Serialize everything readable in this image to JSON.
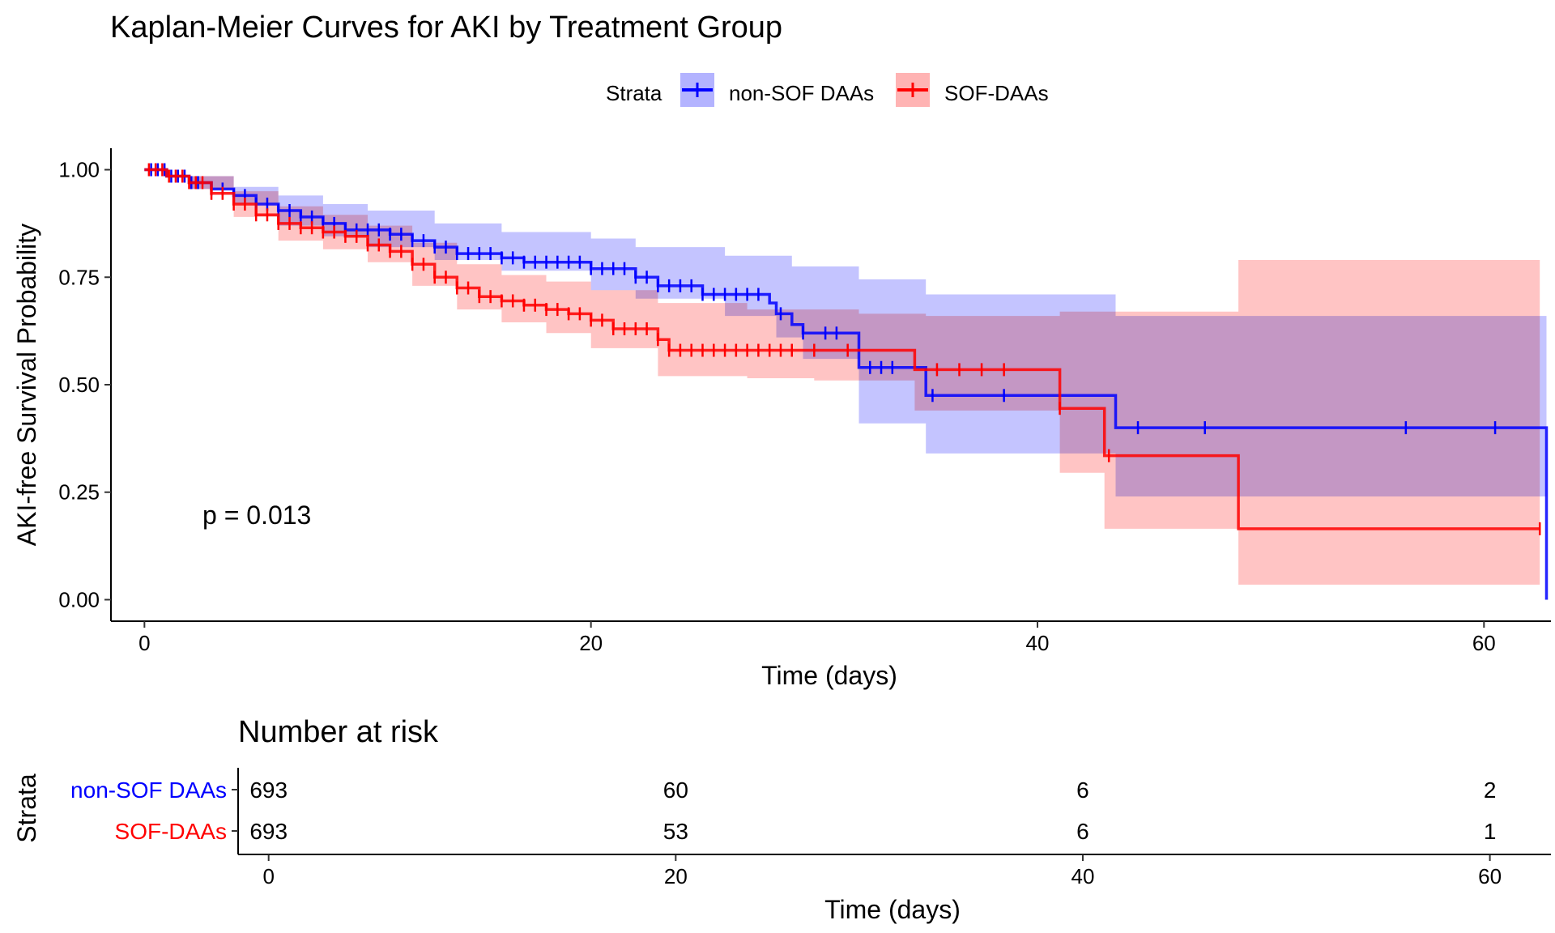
{
  "chart_data": [
    {
      "type": "line",
      "subtype": "kaplan-meier",
      "title": "Kaplan-Meier Curves for AKI by Treatment Group",
      "xlabel": "Time (days)",
      "ylabel": "AKI-free Survival Probability",
      "xlim": [
        -1.5,
        63
      ],
      "ylim": [
        -0.05,
        1.05
      ],
      "x_ticks": [
        0,
        20,
        40,
        60
      ],
      "y_ticks": [
        0.0,
        0.25,
        0.5,
        0.75,
        1.0
      ],
      "y_tick_labels": [
        "0.00",
        "0.25",
        "0.50",
        "0.75",
        "1.00"
      ],
      "grid": false,
      "legend": {
        "title": "Strata",
        "placement": "top",
        "entries": [
          "non-SOF DAAs",
          "SOF-DAAs"
        ]
      },
      "annotation": "p = 0.013",
      "series": [
        {
          "name": "non-SOF DAAs",
          "color": "#0000ff",
          "band_color": "#b3b3ff",
          "steps": [
            [
              0,
              1.0
            ],
            [
              1,
              0.985
            ],
            [
              2,
              0.97
            ],
            [
              3,
              0.955
            ],
            [
              4,
              0.94
            ],
            [
              5,
              0.92
            ],
            [
              6,
              0.905
            ],
            [
              7,
              0.89
            ],
            [
              8,
              0.875
            ],
            [
              9,
              0.86
            ],
            [
              11,
              0.85
            ],
            [
              12,
              0.835
            ],
            [
              13,
              0.82
            ],
            [
              14,
              0.805
            ],
            [
              16,
              0.795
            ],
            [
              17,
              0.785
            ],
            [
              20,
              0.77
            ],
            [
              22,
              0.75
            ],
            [
              23,
              0.73
            ],
            [
              25,
              0.71
            ],
            [
              28,
              0.69
            ],
            [
              28.3,
              0.665
            ],
            [
              29,
              0.64
            ],
            [
              29.5,
              0.62
            ],
            [
              32,
              0.54
            ],
            [
              34.5,
              0.54
            ],
            [
              35,
              0.475
            ],
            [
              43.5,
              0.4
            ],
            [
              62.8,
              0.0
            ]
          ],
          "upper": [
            [
              0,
              1.0
            ],
            [
              2,
              0.985
            ],
            [
              4,
              0.96
            ],
            [
              6,
              0.94
            ],
            [
              8,
              0.92
            ],
            [
              10,
              0.905
            ],
            [
              13,
              0.875
            ],
            [
              16,
              0.855
            ],
            [
              20,
              0.84
            ],
            [
              22,
              0.82
            ],
            [
              26,
              0.8
            ],
            [
              29,
              0.775
            ],
            [
              32,
              0.745
            ],
            [
              35,
              0.71
            ],
            [
              43.5,
              0.66
            ],
            [
              62.8,
              0.66
            ]
          ],
          "lower": [
            [
              0,
              1.0
            ],
            [
              2,
              0.955
            ],
            [
              4,
              0.92
            ],
            [
              6,
              0.87
            ],
            [
              8,
              0.845
            ],
            [
              10,
              0.82
            ],
            [
              13,
              0.79
            ],
            [
              16,
              0.765
            ],
            [
              20,
              0.72
            ],
            [
              22,
              0.7
            ],
            [
              26,
              0.66
            ],
            [
              28.3,
              0.61
            ],
            [
              29.5,
              0.56
            ],
            [
              32,
              0.41
            ],
            [
              35,
              0.34
            ],
            [
              41,
              0.34
            ],
            [
              43.5,
              0.24
            ],
            [
              62.8,
              0.24
            ]
          ],
          "censor_x": [
            0.3,
            0.6,
            0.9,
            1.2,
            1.5,
            1.8,
            2.1,
            2.4,
            3,
            3.5,
            4,
            4.5,
            5,
            5.5,
            6,
            6.5,
            7,
            7.5,
            8,
            8.5,
            9,
            9.5,
            10,
            10.5,
            11,
            11.5,
            12,
            12.5,
            13,
            13.5,
            14,
            14.5,
            15,
            15.5,
            16,
            16.5,
            17,
            17.5,
            18,
            18.5,
            19,
            19.5,
            20,
            20.5,
            21,
            21.5,
            22,
            22.5,
            23,
            23.5,
            24,
            24.5,
            25,
            25.5,
            26,
            26.5,
            27,
            27.5,
            28.5,
            29.5,
            30.5,
            31,
            32.5,
            33,
            33.5,
            35.3,
            38.5,
            44.5,
            47.5,
            56.5,
            60.5
          ]
        },
        {
          "name": "SOF-DAAs",
          "color": "#ff0000",
          "band_color": "#ffb3b3",
          "steps": [
            [
              0,
              1.0
            ],
            [
              1,
              0.985
            ],
            [
              2,
              0.97
            ],
            [
              3,
              0.945
            ],
            [
              4,
              0.92
            ],
            [
              5,
              0.895
            ],
            [
              6,
              0.875
            ],
            [
              7,
              0.865
            ],
            [
              8,
              0.855
            ],
            [
              9,
              0.845
            ],
            [
              10,
              0.825
            ],
            [
              11,
              0.81
            ],
            [
              12,
              0.78
            ],
            [
              13,
              0.75
            ],
            [
              14,
              0.725
            ],
            [
              15,
              0.705
            ],
            [
              16,
              0.695
            ],
            [
              17,
              0.685
            ],
            [
              18,
              0.675
            ],
            [
              19,
              0.665
            ],
            [
              20,
              0.65
            ],
            [
              21,
              0.63
            ],
            [
              23,
              0.605
            ],
            [
              23.5,
              0.58
            ],
            [
              32,
              0.58
            ],
            [
              34.5,
              0.535
            ],
            [
              41,
              0.445
            ],
            [
              43,
              0.335
            ],
            [
              49,
              0.165
            ],
            [
              62.5,
              0.165
            ]
          ],
          "upper": [
            [
              0,
              1.0
            ],
            [
              2,
              0.985
            ],
            [
              4,
              0.95
            ],
            [
              6,
              0.915
            ],
            [
              8,
              0.895
            ],
            [
              10,
              0.87
            ],
            [
              12,
              0.83
            ],
            [
              14,
              0.78
            ],
            [
              16,
              0.755
            ],
            [
              18,
              0.74
            ],
            [
              20,
              0.72
            ],
            [
              23,
              0.69
            ],
            [
              27,
              0.675
            ],
            [
              32,
              0.665
            ],
            [
              35,
              0.66
            ],
            [
              41,
              0.67
            ],
            [
              49,
              0.79
            ],
            [
              62.5,
              0.79
            ]
          ],
          "lower": [
            [
              0,
              1.0
            ],
            [
              2,
              0.955
            ],
            [
              4,
              0.89
            ],
            [
              6,
              0.835
            ],
            [
              8,
              0.815
            ],
            [
              10,
              0.785
            ],
            [
              12,
              0.73
            ],
            [
              14,
              0.675
            ],
            [
              16,
              0.645
            ],
            [
              18,
              0.62
            ],
            [
              20,
              0.585
            ],
            [
              23,
              0.52
            ],
            [
              27,
              0.515
            ],
            [
              30,
              0.51
            ],
            [
              34.5,
              0.44
            ],
            [
              41,
              0.295
            ],
            [
              43,
              0.165
            ],
            [
              49,
              0.035
            ],
            [
              62.5,
              0.035
            ]
          ],
          "censor_x": [
            0.2,
            0.5,
            0.8,
            1.1,
            1.4,
            1.7,
            2,
            2.3,
            2.6,
            3,
            3.5,
            4,
            4.5,
            5,
            5.5,
            6,
            6.5,
            7,
            7.5,
            8,
            8.5,
            9,
            9.5,
            10,
            10.5,
            11,
            11.5,
            12,
            12.5,
            13,
            13.5,
            14,
            14.5,
            15,
            15.5,
            16,
            16.5,
            17,
            17.5,
            18,
            18.5,
            19,
            19.5,
            20,
            20.5,
            21,
            21.5,
            22,
            22.5,
            23,
            23.5,
            24,
            24.5,
            25,
            25.5,
            26,
            26.5,
            27,
            27.5,
            28,
            28.5,
            29,
            30,
            31.5,
            35.5,
            36.5,
            37.5,
            38.5,
            41,
            43.2,
            62.5
          ]
        }
      ]
    },
    {
      "type": "table",
      "title": "Number at risk",
      "xlabel": "Time (days)",
      "ylabel": "Strata",
      "x_ticks": [
        0,
        20,
        40,
        60
      ],
      "rows": [
        {
          "label": "non-SOF DAAs",
          "color": "#0000ff",
          "values": [
            693,
            60,
            6,
            2
          ]
        },
        {
          "label": "SOF-DAAs",
          "color": "#ff0000",
          "values": [
            693,
            53,
            6,
            1
          ]
        }
      ]
    }
  ]
}
